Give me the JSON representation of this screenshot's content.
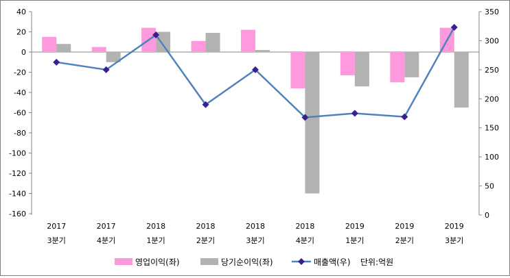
{
  "chart_data": {
    "type": "bar",
    "categories": [
      {
        "year": "2017",
        "quarter": "3분기"
      },
      {
        "year": "2017",
        "quarter": "4분기"
      },
      {
        "year": "2018",
        "quarter": "1분기"
      },
      {
        "year": "2018",
        "quarter": "2분기"
      },
      {
        "year": "2018",
        "quarter": "3분기"
      },
      {
        "year": "2018",
        "quarter": "4분기"
      },
      {
        "year": "2019",
        "quarter": "1분기"
      },
      {
        "year": "2019",
        "quarter": "2분기"
      },
      {
        "year": "2019",
        "quarter": "3분기"
      }
    ],
    "series": [
      {
        "name": "영업이익(좌)",
        "type": "bar",
        "axis": "left",
        "color": "#ff99dd",
        "values": [
          15,
          5,
          24,
          11,
          22,
          -36,
          -23,
          -30,
          24
        ]
      },
      {
        "name": "당기순이익(좌)",
        "type": "bar",
        "axis": "left",
        "color": "#b2b2b2",
        "values": [
          8,
          -10,
          20,
          19,
          2,
          -140,
          -34,
          -25,
          -55
        ]
      },
      {
        "name": "매출액(우)",
        "type": "line",
        "axis": "right",
        "color": "#4f81bd",
        "marker_color": "#3b1e8f",
        "values": [
          263,
          250,
          310,
          190,
          250,
          168,
          175,
          169,
          323
        ]
      }
    ],
    "y_left": {
      "min": -160,
      "max": 40,
      "step": 20
    },
    "y_right": {
      "min": 0,
      "max": 350,
      "step": 50
    },
    "unit_note": "단위:억원",
    "legend_position": "bottom",
    "grid": false
  }
}
